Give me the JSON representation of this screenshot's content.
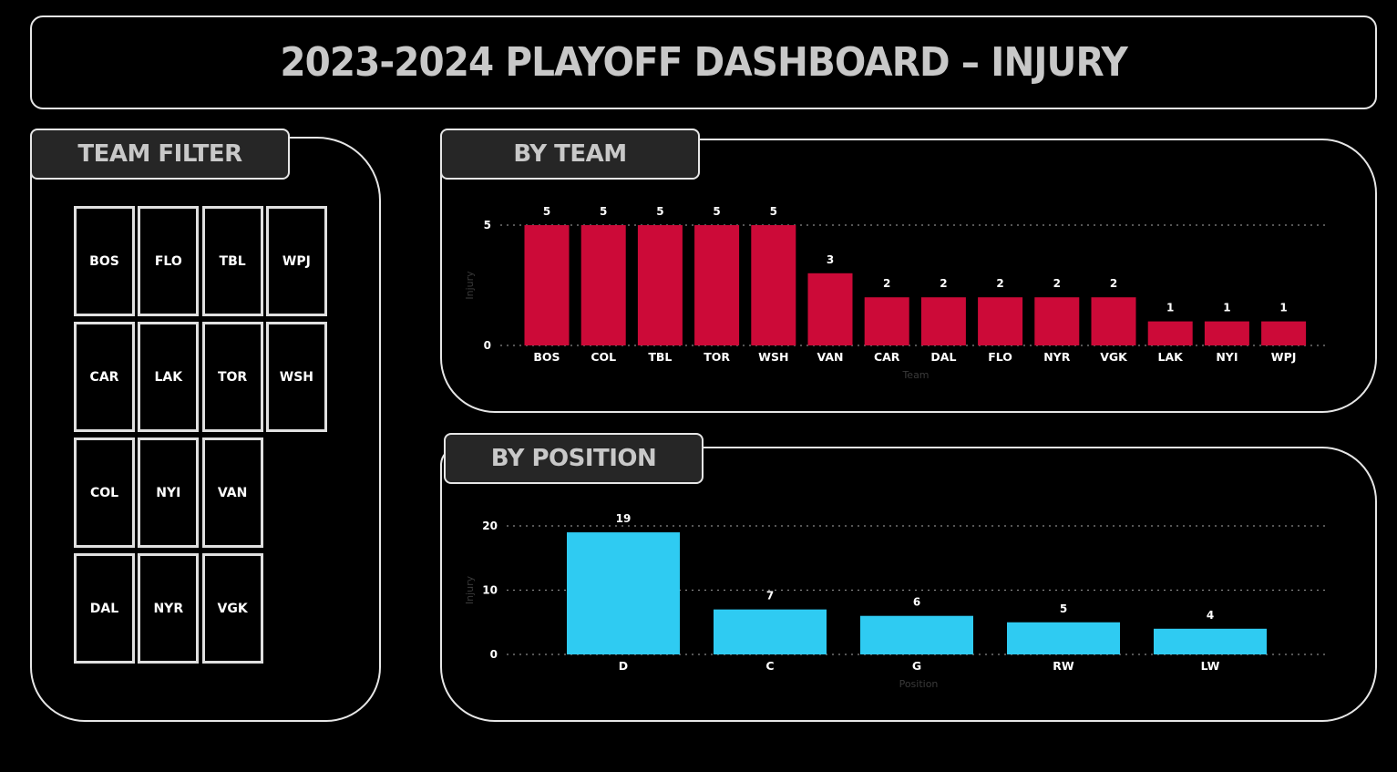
{
  "title": "2023-2024 PLAYOFF DASHBOARD –  INJURY",
  "team_filter": {
    "label": "TEAM FILTER",
    "teams": [
      "BOS",
      "FLO",
      "TBL",
      "WPJ",
      "CAR",
      "LAK",
      "TOR",
      "WSH",
      "COL",
      "NYI",
      "VAN",
      "DAL",
      "NYR",
      "VGK"
    ]
  },
  "colors": {
    "team_bar": "#cc0a38",
    "position_bar": "#2fcbf2"
  },
  "chart_data": [
    {
      "type": "bar",
      "title": "BY TEAM",
      "xlabel": "Team",
      "ylabel": "Injury",
      "categories": [
        "BOS",
        "COL",
        "TBL",
        "TOR",
        "WSH",
        "VAN",
        "CAR",
        "DAL",
        "FLO",
        "NYR",
        "VGK",
        "LAK",
        "NYI",
        "WPJ"
      ],
      "values": [
        5,
        5,
        5,
        5,
        5,
        3,
        2,
        2,
        2,
        2,
        2,
        1,
        1,
        1
      ],
      "yticks": [
        0,
        5
      ],
      "ylim": [
        0,
        5
      ],
      "grid": true
    },
    {
      "type": "bar",
      "title": "BY POSITION",
      "xlabel": "Position",
      "ylabel": "Injury",
      "categories": [
        "D",
        "C",
        "G",
        "RW",
        "LW"
      ],
      "values": [
        19,
        7,
        6,
        5,
        4
      ],
      "yticks": [
        0,
        10,
        20
      ],
      "ylim": [
        0,
        20
      ],
      "grid": true
    }
  ]
}
